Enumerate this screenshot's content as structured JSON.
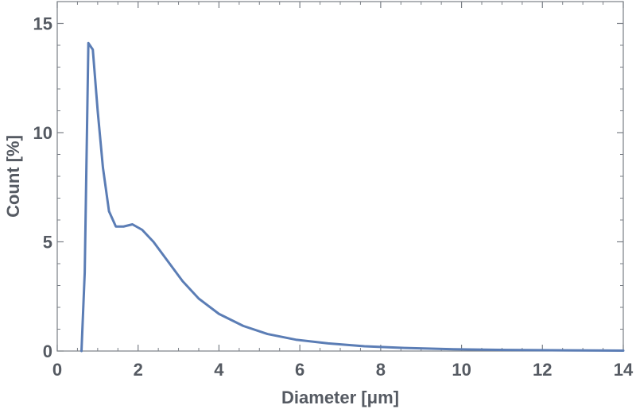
{
  "chart_data": {
    "type": "line",
    "title": "",
    "xlabel": "Diameter [μm]",
    "ylabel": "Count [%]",
    "xlim": [
      0,
      14
    ],
    "ylim": [
      0,
      16
    ],
    "xticks": [
      "0",
      "2",
      "4",
      "6",
      "8",
      "10",
      "12",
      "14"
    ],
    "yticks": [
      "0",
      "5",
      "10",
      "15"
    ],
    "grid": false,
    "legend": "none",
    "series": [
      {
        "color": "#5b7db5",
        "x": [
          0.6,
          0.68,
          0.77,
          0.88,
          1.0,
          1.13,
          1.28,
          1.45,
          1.64,
          1.86,
          2.1,
          2.38,
          2.7,
          3.1,
          3.5,
          4.0,
          4.6,
          5.2,
          5.9,
          6.7,
          7.6,
          8.6,
          9.8,
          11.1,
          12.6,
          14.0
        ],
        "y": [
          0.0,
          3.6,
          14.1,
          13.8,
          11.0,
          8.4,
          6.4,
          5.7,
          5.7,
          5.8,
          5.55,
          5.0,
          4.2,
          3.2,
          2.4,
          1.7,
          1.15,
          0.78,
          0.52,
          0.35,
          0.22,
          0.14,
          0.08,
          0.05,
          0.03,
          0.02
        ]
      }
    ]
  }
}
